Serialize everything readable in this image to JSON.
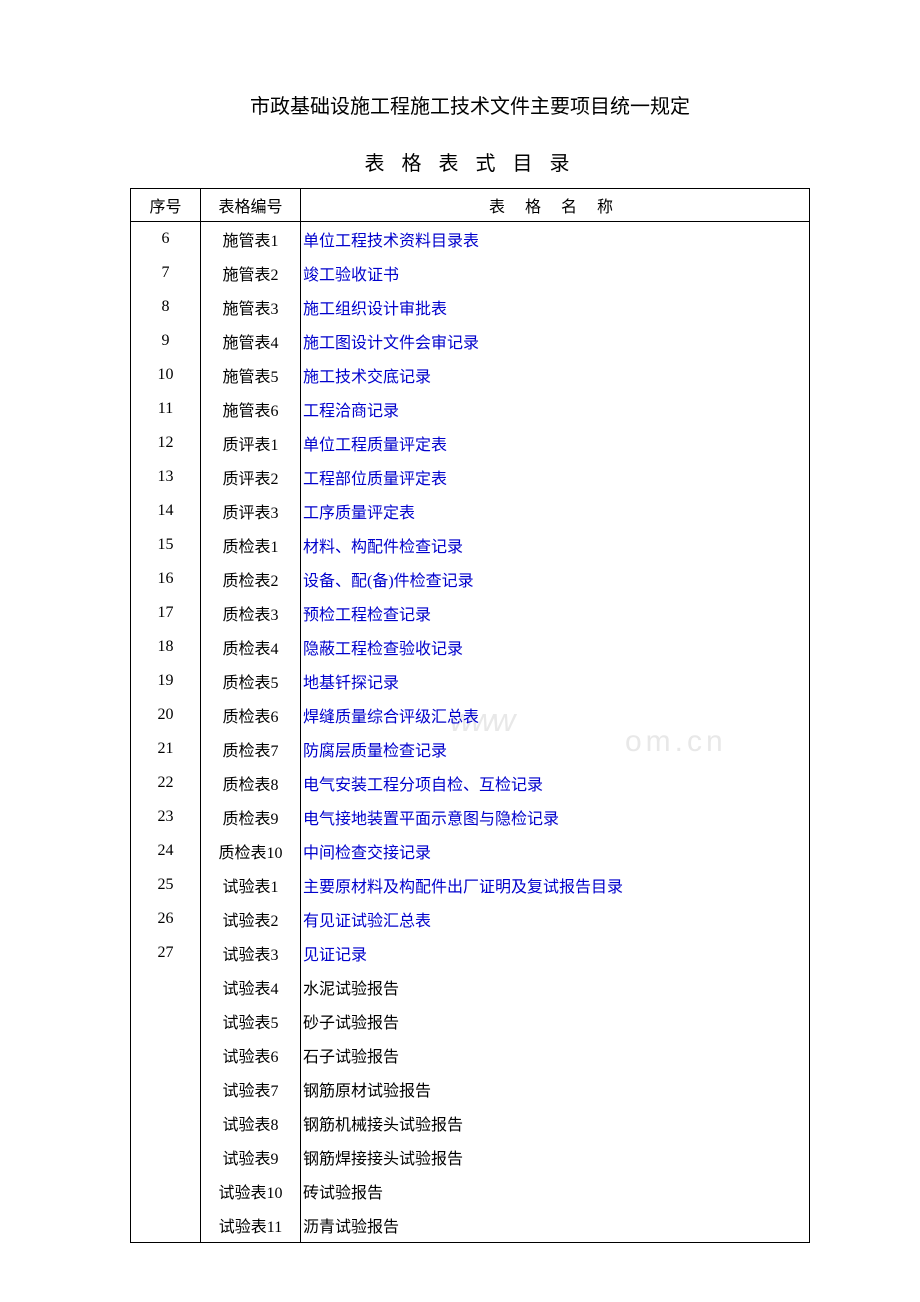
{
  "title": "市政基础设施工程施工技术文件主要项目统一规定",
  "subtitle": "表 格 表 式 目 录",
  "watermark1": "www",
  "watermark2": "om.cn",
  "columns": {
    "seq": "序号",
    "code": "表格编号",
    "name": "表  格  名  称"
  },
  "rows": [
    {
      "seq": "6",
      "code": "施管表1",
      "name": "单位工程技术资料目录表",
      "link": true
    },
    {
      "seq": "7",
      "code": "施管表2",
      "name": "竣工验收证书",
      "link": true
    },
    {
      "seq": "8",
      "code": "施管表3",
      "name": "施工组织设计审批表",
      "link": true
    },
    {
      "seq": "9",
      "code": "施管表4",
      "name": "施工图设计文件会审记录",
      "link": true
    },
    {
      "seq": "10",
      "code": "施管表5",
      "name": "施工技术交底记录",
      "link": true
    },
    {
      "seq": "11",
      "code": "施管表6",
      "name": "工程洽商记录",
      "link": true
    },
    {
      "seq": "12",
      "code": "质评表1",
      "name": "单位工程质量评定表",
      "link": true
    },
    {
      "seq": "13",
      "code": "质评表2",
      "name": "工程部位质量评定表",
      "link": true
    },
    {
      "seq": "14",
      "code": "质评表3",
      "name": "工序质量评定表",
      "link": true
    },
    {
      "seq": "15",
      "code": "质检表1",
      "name": "材料、构配件检查记录",
      "link": true
    },
    {
      "seq": "16",
      "code": "质检表2",
      "name": "设备、配(备)件检查记录",
      "link": true
    },
    {
      "seq": "17",
      "code": "质检表3",
      "name": "预检工程检查记录",
      "link": true
    },
    {
      "seq": "18",
      "code": "质检表4",
      "name": "隐蔽工程检查验收记录",
      "link": true
    },
    {
      "seq": "19",
      "code": "质检表5",
      "name": "地基钎探记录",
      "link": true
    },
    {
      "seq": "20",
      "code": "质检表6",
      "name": "焊缝质量综合评级汇总表",
      "link": true
    },
    {
      "seq": "21",
      "code": "质检表7",
      "name": "防腐层质量检查记录",
      "link": true
    },
    {
      "seq": "22",
      "code": "质检表8",
      "name": "电气安装工程分项自检、互检记录",
      "link": true
    },
    {
      "seq": "23",
      "code": "质检表9",
      "name": "电气接地装置平面示意图与隐检记录",
      "link": true
    },
    {
      "seq": "24",
      "code": "质检表10",
      "name": "中间检查交接记录",
      "link": true
    },
    {
      "seq": "25",
      "code": "试验表1",
      "name": "主要原材料及构配件出厂证明及复试报告目录",
      "link": true
    },
    {
      "seq": "26",
      "code": "试验表2",
      "name": "有见证试验汇总表",
      "link": true
    },
    {
      "seq": "27",
      "code": "试验表3",
      "name": "见证记录",
      "link": true
    },
    {
      "seq": "",
      "code": "试验表4",
      "name": "水泥试验报告",
      "link": false
    },
    {
      "seq": "",
      "code": "试验表5",
      "name": "砂子试验报告",
      "link": false
    },
    {
      "seq": "",
      "code": "试验表6",
      "name": "石子试验报告",
      "link": false
    },
    {
      "seq": "",
      "code": "试验表7",
      "name": "钢筋原材试验报告",
      "link": false
    },
    {
      "seq": "",
      "code": "试验表8",
      "name": "钢筋机械接头试验报告",
      "link": false
    },
    {
      "seq": "",
      "code": "试验表9",
      "name": "钢筋焊接接头试验报告",
      "link": false
    },
    {
      "seq": "",
      "code": "试验表10",
      "name": "砖试验报告",
      "link": false
    },
    {
      "seq": "",
      "code": "试验表11",
      "name": "沥青试验报告",
      "link": false
    }
  ],
  "colors": {
    "text": "#000000",
    "link": "#0000cc",
    "border": "#000000",
    "background": "#ffffff",
    "watermark": "#e8e8e8"
  },
  "table_style": {
    "font_size": 16,
    "title_font_size": 20,
    "col_widths": {
      "seq": 70,
      "code": 100
    }
  }
}
